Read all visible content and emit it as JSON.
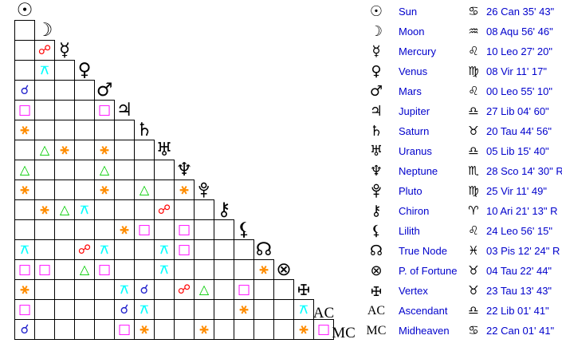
{
  "page": {
    "background": "#FFFFFF",
    "text_blue": "#0000CC"
  },
  "aspect_grid": {
    "planets": [
      {
        "id": "sun",
        "glyph": "☉"
      },
      {
        "id": "moon",
        "glyph": "☽"
      },
      {
        "id": "mercury",
        "glyph": "☿"
      },
      {
        "id": "venus",
        "glyph": "♀"
      },
      {
        "id": "mars",
        "glyph": "♂"
      },
      {
        "id": "jupiter",
        "glyph": "♃"
      },
      {
        "id": "saturn",
        "glyph": "♄"
      },
      {
        "id": "uranus",
        "glyph": "♅"
      },
      {
        "id": "neptune",
        "glyph": "♆"
      },
      {
        "id": "pluto",
        "glyph": "♇"
      },
      {
        "id": "chiron",
        "glyph": "⚷"
      },
      {
        "id": "lilith",
        "glyph": "⚸"
      },
      {
        "id": "true_node",
        "glyph": "☊"
      },
      {
        "id": "fortune",
        "glyph": "⊗"
      },
      {
        "id": "vertex",
        "glyph": "✛"
      },
      {
        "id": "ascendant",
        "glyph": "AC"
      },
      {
        "id": "midheaven",
        "glyph": "MC"
      }
    ],
    "aspect_types": {
      "conjunction": {
        "glyph": "☌",
        "color": "#2222CC",
        "size": 16
      },
      "opposition": {
        "glyph": "☍",
        "color": "#FF0000",
        "size": 16
      },
      "square": {
        "glyph": "□",
        "color": "#FF00FF",
        "size": 17
      },
      "trine": {
        "glyph": "△",
        "color": "#00CC00",
        "size": 16
      },
      "sextile": {
        "glyph": "⚹",
        "color": "#FF8C00",
        "size": 18
      },
      "quincunx": {
        "glyph": "⚻",
        "color": "#00FFFF",
        "size": 16
      }
    },
    "aspects": [
      {
        "row": "mercury",
        "col": "moon",
        "type": "opposition"
      },
      {
        "row": "venus",
        "col": "moon",
        "type": "quincunx"
      },
      {
        "row": "mars",
        "col": "sun",
        "type": "conjunction"
      },
      {
        "row": "jupiter",
        "col": "sun",
        "type": "square"
      },
      {
        "row": "jupiter",
        "col": "mars",
        "type": "square"
      },
      {
        "row": "saturn",
        "col": "sun",
        "type": "sextile"
      },
      {
        "row": "uranus",
        "col": "moon",
        "type": "trine"
      },
      {
        "row": "uranus",
        "col": "mercury",
        "type": "sextile"
      },
      {
        "row": "uranus",
        "col": "mars",
        "type": "sextile"
      },
      {
        "row": "neptune",
        "col": "sun",
        "type": "trine"
      },
      {
        "row": "neptune",
        "col": "mars",
        "type": "trine"
      },
      {
        "row": "pluto",
        "col": "sun",
        "type": "sextile"
      },
      {
        "row": "pluto",
        "col": "mars",
        "type": "sextile"
      },
      {
        "row": "pluto",
        "col": "saturn",
        "type": "trine"
      },
      {
        "row": "pluto",
        "col": "neptune",
        "type": "sextile"
      },
      {
        "row": "chiron",
        "col": "moon",
        "type": "sextile"
      },
      {
        "row": "chiron",
        "col": "mercury",
        "type": "trine"
      },
      {
        "row": "chiron",
        "col": "venus",
        "type": "quincunx"
      },
      {
        "row": "chiron",
        "col": "uranus",
        "type": "opposition"
      },
      {
        "row": "lilith",
        "col": "jupiter",
        "type": "sextile"
      },
      {
        "row": "lilith",
        "col": "saturn",
        "type": "square"
      },
      {
        "row": "lilith",
        "col": "neptune",
        "type": "square"
      },
      {
        "row": "true_node",
        "col": "sun",
        "type": "quincunx"
      },
      {
        "row": "true_node",
        "col": "venus",
        "type": "opposition"
      },
      {
        "row": "true_node",
        "col": "mars",
        "type": "quincunx"
      },
      {
        "row": "true_node",
        "col": "uranus",
        "type": "quincunx"
      },
      {
        "row": "true_node",
        "col": "neptune",
        "type": "square"
      },
      {
        "row": "fortune",
        "col": "sun",
        "type": "square"
      },
      {
        "row": "fortune",
        "col": "moon",
        "type": "square"
      },
      {
        "row": "fortune",
        "col": "venus",
        "type": "trine"
      },
      {
        "row": "fortune",
        "col": "mars",
        "type": "square"
      },
      {
        "row": "fortune",
        "col": "uranus",
        "type": "quincunx"
      },
      {
        "row": "fortune",
        "col": "true_node",
        "type": "sextile"
      },
      {
        "row": "vertex",
        "col": "sun",
        "type": "sextile"
      },
      {
        "row": "vertex",
        "col": "jupiter",
        "type": "quincunx"
      },
      {
        "row": "vertex",
        "col": "saturn",
        "type": "conjunction"
      },
      {
        "row": "vertex",
        "col": "neptune",
        "type": "opposition"
      },
      {
        "row": "vertex",
        "col": "pluto",
        "type": "trine"
      },
      {
        "row": "vertex",
        "col": "lilith",
        "type": "square"
      },
      {
        "row": "ascendant",
        "col": "sun",
        "type": "square"
      },
      {
        "row": "ascendant",
        "col": "jupiter",
        "type": "conjunction"
      },
      {
        "row": "ascendant",
        "col": "saturn",
        "type": "quincunx"
      },
      {
        "row": "ascendant",
        "col": "lilith",
        "type": "sextile"
      },
      {
        "row": "ascendant",
        "col": "vertex",
        "type": "quincunx"
      },
      {
        "row": "midheaven",
        "col": "sun",
        "type": "conjunction"
      },
      {
        "row": "midheaven",
        "col": "jupiter",
        "type": "square"
      },
      {
        "row": "midheaven",
        "col": "saturn",
        "type": "sextile"
      },
      {
        "row": "midheaven",
        "col": "pluto",
        "type": "sextile"
      },
      {
        "row": "midheaven",
        "col": "vertex",
        "type": "sextile"
      },
      {
        "row": "midheaven",
        "col": "ascendant",
        "type": "square"
      }
    ]
  },
  "positions_table": {
    "rows": [
      {
        "id": "sun",
        "glyph": "☉",
        "name": "Sun",
        "sign_glyph": "♋",
        "position": "26 Can 35' 43\""
      },
      {
        "id": "moon",
        "glyph": "☽",
        "name": "Moon",
        "sign_glyph": "♒",
        "position": "08 Aqu 56' 46\""
      },
      {
        "id": "mercury",
        "glyph": "☿",
        "name": "Mercury",
        "sign_glyph": "♌",
        "position": "10 Leo 27' 20\""
      },
      {
        "id": "venus",
        "glyph": "♀",
        "name": "Venus",
        "sign_glyph": "♍",
        "position": "08 Vir 11' 17\""
      },
      {
        "id": "mars",
        "glyph": "♂",
        "name": "Mars",
        "sign_glyph": "♌",
        "position": "00 Leo 55' 10\""
      },
      {
        "id": "jupiter",
        "glyph": "♃",
        "name": "Jupiter",
        "sign_glyph": "♎",
        "position": "27 Lib 04' 60\""
      },
      {
        "id": "saturn",
        "glyph": "♄",
        "name": "Saturn",
        "sign_glyph": "♉",
        "position": "20 Tau 44' 56\""
      },
      {
        "id": "uranus",
        "glyph": "♅",
        "name": "Uranus",
        "sign_glyph": "♎",
        "position": "05 Lib 15' 40\""
      },
      {
        "id": "neptune",
        "glyph": "♆",
        "name": "Neptune",
        "sign_glyph": "♏",
        "position": "28 Sco 14' 30\" R"
      },
      {
        "id": "pluto",
        "glyph": "♇",
        "name": "Pluto",
        "sign_glyph": "♍",
        "position": "25 Vir 11' 49\""
      },
      {
        "id": "chiron",
        "glyph": "⚷",
        "name": "Chiron",
        "sign_glyph": "♈",
        "position": "10 Ari 21' 13\" R"
      },
      {
        "id": "lilith",
        "glyph": "⚸",
        "name": "Lilith",
        "sign_glyph": "♌",
        "position": "24 Leo 56' 15\""
      },
      {
        "id": "true_node",
        "glyph": "☊",
        "name": "True Node",
        "sign_glyph": "♓",
        "position": "03 Pis 12' 24\" R"
      },
      {
        "id": "fortune",
        "glyph": "⊗",
        "name": "P. of Fortune",
        "sign_glyph": "♉",
        "position": "04 Tau 22' 44\""
      },
      {
        "id": "vertex",
        "glyph": "✛",
        "name": "Vertex",
        "sign_glyph": "♉",
        "position": "23 Tau 13' 43\""
      },
      {
        "id": "ascendant",
        "glyph": "AC",
        "name": "Ascendant",
        "sign_glyph": "♎",
        "position": "22 Lib 01' 41\""
      },
      {
        "id": "midheaven",
        "glyph": "MC",
        "name": "Midheaven",
        "sign_glyph": "♋",
        "position": "22 Can 01' 41\""
      }
    ]
  }
}
